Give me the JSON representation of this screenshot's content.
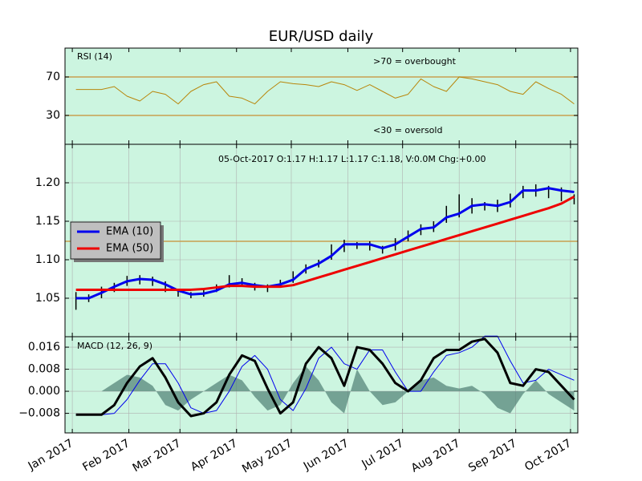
{
  "chart_data": [
    {
      "type": "line",
      "title": "EUR/USD daily",
      "label": "RSI (14)",
      "annotations": [
        ">70 = overbought",
        "<30 = oversold"
      ],
      "background": "#ccf5e0",
      "xlim": [
        -3,
        278
      ],
      "ylim": [
        0,
        100
      ],
      "yticks": [
        30,
        70
      ],
      "hlines": [
        70,
        30
      ],
      "hline_color": "#c8a050",
      "grid": false,
      "x": [
        3,
        10,
        17,
        24,
        31,
        38,
        45,
        52,
        59,
        66,
        73,
        80,
        87,
        94,
        101,
        108,
        115,
        122,
        129,
        136,
        143,
        150,
        157,
        164,
        171,
        178,
        185,
        192,
        199,
        206,
        213,
        220,
        227,
        234,
        241,
        248,
        255,
        262,
        269,
        276
      ],
      "series": [
        {
          "color": "#b8860b",
          "width": 1,
          "kind": "line",
          "values": [
            57,
            57,
            57,
            60,
            50,
            45,
            55,
            52,
            42,
            55,
            62,
            65,
            50,
            48,
            42,
            55,
            65,
            63,
            62,
            60,
            65,
            62,
            56,
            62,
            55,
            48,
            52,
            68,
            60,
            55,
            70,
            68,
            65,
            62,
            55,
            52,
            65,
            58,
            52,
            42
          ]
        }
      ]
    },
    {
      "type": "ohlc",
      "annotation": "05-Oct-2017 O:1.17 H:1.17 L:1.17 C:1.18, V:0.0M Chg:+0.00",
      "background": "#ccf5e0",
      "xlim": [
        -3,
        278
      ],
      "ylim": [
        1.0,
        1.25
      ],
      "yticks": [
        1.05,
        {
          "value": 1.1,
          "label": "1.10"
        },
        1.15,
        {
          "value": 1.2,
          "label": "1.20"
        }
      ],
      "hlines": [
        1.124
      ],
      "hline_color": "#c8a050",
      "grid": true,
      "x": [
        3,
        10,
        17,
        24,
        31,
        38,
        45,
        52,
        59,
        66,
        73,
        80,
        87,
        94,
        101,
        108,
        115,
        122,
        129,
        136,
        143,
        150,
        157,
        164,
        171,
        178,
        185,
        192,
        199,
        206,
        213,
        220,
        227,
        234,
        241,
        248,
        255,
        262,
        269,
        276
      ],
      "high": [
        1.058,
        1.055,
        1.065,
        1.07,
        1.079,
        1.08,
        1.078,
        1.072,
        1.062,
        1.058,
        1.062,
        1.068,
        1.08,
        1.076,
        1.07,
        1.068,
        1.074,
        1.085,
        1.094,
        1.1,
        1.12,
        1.126,
        1.123,
        1.124,
        1.118,
        1.128,
        1.138,
        1.146,
        1.15,
        1.17,
        1.185,
        1.18,
        1.175,
        1.178,
        1.186,
        1.196,
        1.198,
        1.196,
        1.194,
        1.185
      ],
      "low": [
        1.035,
        1.045,
        1.05,
        1.058,
        1.066,
        1.068,
        1.066,
        1.058,
        1.052,
        1.05,
        1.052,
        1.058,
        1.064,
        1.065,
        1.06,
        1.058,
        1.064,
        1.07,
        1.082,
        1.09,
        1.1,
        1.11,
        1.114,
        1.112,
        1.108,
        1.112,
        1.124,
        1.132,
        1.136,
        1.148,
        1.155,
        1.16,
        1.164,
        1.162,
        1.168,
        1.18,
        1.182,
        1.18,
        1.176,
        1.172
      ],
      "legend": "center left",
      "series": [
        {
          "name": "EMA (10)",
          "color": "#0000ee",
          "width": 3,
          "kind": "line",
          "values": [
            1.05,
            1.05,
            1.057,
            1.065,
            1.072,
            1.075,
            1.074,
            1.068,
            1.06,
            1.055,
            1.056,
            1.06,
            1.068,
            1.07,
            1.067,
            1.065,
            1.068,
            1.074,
            1.088,
            1.095,
            1.105,
            1.12,
            1.12,
            1.12,
            1.115,
            1.12,
            1.13,
            1.14,
            1.142,
            1.155,
            1.16,
            1.17,
            1.172,
            1.17,
            1.175,
            1.19,
            1.19,
            1.193,
            1.19,
            1.188
          ]
        },
        {
          "name": "EMA (50)",
          "color": "#ee0000",
          "width": 3,
          "kind": "line",
          "values": [
            1.061,
            1.061,
            1.061,
            1.061,
            1.061,
            1.061,
            1.061,
            1.061,
            1.061,
            1.061,
            1.062,
            1.064,
            1.066,
            1.066,
            1.065,
            1.065,
            1.065,
            1.067,
            1.072,
            1.077,
            1.082,
            1.087,
            1.092,
            1.097,
            1.102,
            1.107,
            1.112,
            1.117,
            1.122,
            1.127,
            1.132,
            1.137,
            1.142,
            1.147,
            1.152,
            1.157,
            1.162,
            1.167,
            1.173,
            1.182
          ]
        }
      ]
    },
    {
      "type": "line",
      "label": "MACD (12, 26, 9)",
      "background": "#ccf5e0",
      "grid": true,
      "xlim": [
        -3,
        278
      ],
      "ylim": [
        -0.0151,
        0.0198
      ],
      "yticks": [
        {
          "value": -0.008,
          "label": "−0.008"
        },
        {
          "value": 0,
          "label": "0.000"
        },
        0.008,
        0.016
      ],
      "xticks": [
        {
          "value": 1,
          "label": "Jan 2017"
        },
        {
          "value": 32,
          "label": "Feb 2017"
        },
        {
          "value": 60,
          "label": "Mar 2017"
        },
        {
          "value": 91,
          "label": "Apr 2017"
        },
        {
          "value": 121,
          "label": "May 2017"
        },
        {
          "value": 152,
          "label": "Jun 2017"
        },
        {
          "value": 182,
          "label": "Jul 2017"
        },
        {
          "value": 213,
          "label": "Aug 2017"
        },
        {
          "value": 244,
          "label": "Sep 2017"
        },
        {
          "value": 274,
          "label": "Oct 2017"
        }
      ],
      "x": [
        3,
        10,
        17,
        24,
        31,
        38,
        45,
        52,
        59,
        66,
        73,
        80,
        87,
        94,
        101,
        108,
        115,
        122,
        129,
        136,
        143,
        150,
        157,
        164,
        171,
        178,
        185,
        192,
        199,
        206,
        213,
        220,
        227,
        234,
        241,
        248,
        255,
        262,
        269,
        276
      ],
      "series": [
        {
          "kind": "area",
          "color": "#4f7f73",
          "values": [
            0,
            0,
            0,
            0.003,
            0.006,
            0.005,
            0.002,
            -0.005,
            -0.007,
            -0.003,
            0,
            0.003,
            0.006,
            0.004,
            -0.002,
            -0.007,
            -0.005,
            0.003,
            0.009,
            0.004,
            -0.004,
            -0.008,
            0.008,
            0,
            -0.005,
            -0.004,
            0,
            0.004,
            0.005,
            0.002,
            0.001,
            0.002,
            -0.001,
            -0.006,
            -0.008,
            -0.001,
            0.004,
            -0.001,
            -0.004,
            -0.007
          ]
        },
        {
          "kind": "line",
          "color": "#0000ee",
          "width": 1,
          "values": [
            -0.0085,
            -0.0085,
            -0.0085,
            -0.008,
            -0.003,
            0.004,
            0.01,
            0.01,
            0.003,
            -0.006,
            -0.008,
            -0.007,
            0,
            0.009,
            0.013,
            0.008,
            -0.003,
            -0.007,
            0.001,
            0.012,
            0.016,
            0.01,
            0.008,
            0.015,
            0.015,
            0.007,
            0,
            0,
            0.007,
            0.013,
            0.014,
            0.016,
            0.02,
            0.02,
            0.011,
            0.003,
            0.004,
            0.008,
            0.006,
            0.004
          ]
        },
        {
          "kind": "line",
          "color": "#000000",
          "width": 3,
          "values": [
            -0.0085,
            -0.0085,
            -0.0085,
            -0.005,
            0.003,
            0.009,
            0.012,
            0.005,
            -0.004,
            -0.009,
            -0.008,
            -0.004,
            0.006,
            0.013,
            0.011,
            0.001,
            -0.008,
            -0.004,
            0.01,
            0.016,
            0.012,
            0.002,
            0.016,
            0.015,
            0.01,
            0.003,
            0,
            0.004,
            0.012,
            0.015,
            0.015,
            0.018,
            0.019,
            0.014,
            0.003,
            0.002,
            0.008,
            0.007,
            0.002,
            -0.003
          ]
        }
      ]
    }
  ]
}
